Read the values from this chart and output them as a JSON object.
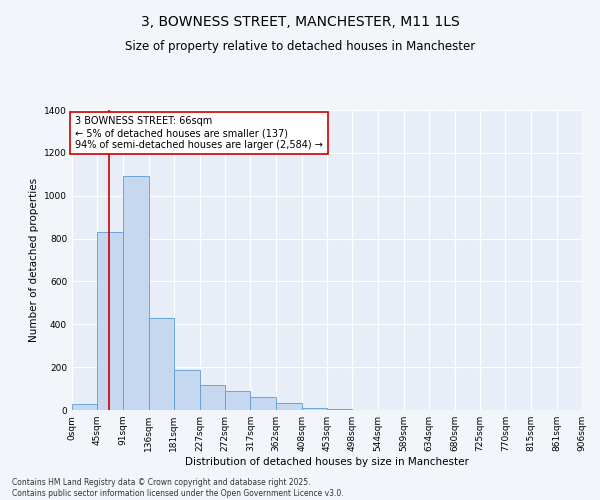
{
  "title": "3, BOWNESS STREET, MANCHESTER, M11 1LS",
  "subtitle": "Size of property relative to detached houses in Manchester",
  "xlabel": "Distribution of detached houses by size in Manchester",
  "ylabel": "Number of detached properties",
  "bin_edges": [
    0,
    45,
    91,
    136,
    181,
    227,
    272,
    317,
    362,
    408,
    453,
    498,
    544,
    589,
    634,
    680,
    725,
    770,
    815,
    861,
    906
  ],
  "bar_heights": [
    30,
    830,
    1090,
    430,
    185,
    115,
    90,
    60,
    35,
    10,
    5,
    1,
    0,
    0,
    0,
    0,
    0,
    0,
    0,
    0
  ],
  "bar_color": "#c5d8f0",
  "bar_edge_color": "#5b9bd5",
  "property_line_x": 66,
  "property_line_color": "#cc0000",
  "annotation_text": "3 BOWNESS STREET: 66sqm\n← 5% of detached houses are smaller (137)\n94% of semi-detached houses are larger (2,584) →",
  "annotation_box_color": "#ffffff",
  "annotation_box_edge": "#cc0000",
  "xlim": [
    0,
    906
  ],
  "ylim": [
    0,
    1400
  ],
  "yticks": [
    0,
    200,
    400,
    600,
    800,
    1000,
    1200,
    1400
  ],
  "background_color": "#e8eef7",
  "fig_background_color": "#f2f5fa",
  "footer_text": "Contains HM Land Registry data © Crown copyright and database right 2025.\nContains public sector information licensed under the Open Government Licence v3.0.",
  "title_fontsize": 10,
  "subtitle_fontsize": 8.5,
  "axis_label_fontsize": 7.5,
  "tick_fontsize": 6.5,
  "annotation_fontsize": 7,
  "footer_fontsize": 5.5
}
